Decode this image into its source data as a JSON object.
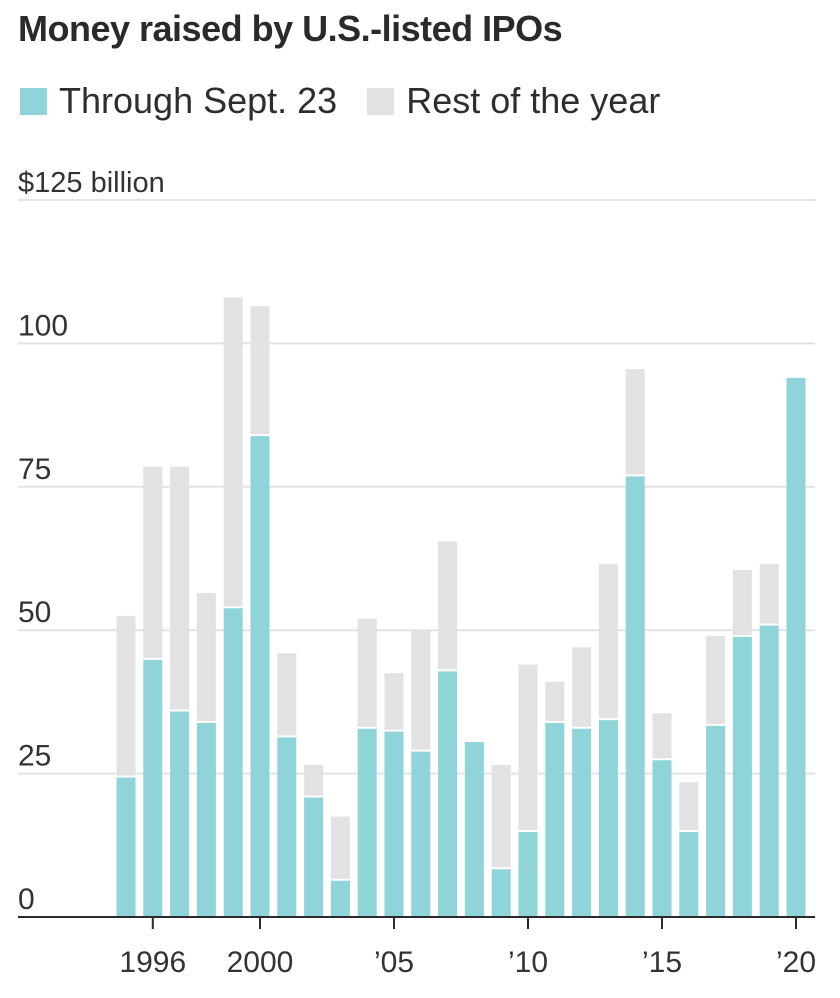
{
  "chart_data": {
    "type": "bar",
    "stacked": true,
    "title": "Money raised by U.S.-listed IPOs",
    "ylabel": "$125 billion",
    "ylim": [
      0,
      125
    ],
    "y_ticks": [
      {
        "value": 0,
        "label": "0"
      },
      {
        "value": 25,
        "label": "25"
      },
      {
        "value": 50,
        "label": "50"
      },
      {
        "value": 75,
        "label": "75"
      },
      {
        "value": 100,
        "label": "100"
      },
      {
        "value": 125,
        "label": "$125 billion"
      }
    ],
    "categories": [
      1995,
      1996,
      1997,
      1998,
      1999,
      2000,
      2001,
      2002,
      2003,
      2004,
      2005,
      2006,
      2007,
      2008,
      2009,
      2010,
      2011,
      2012,
      2013,
      2014,
      2015,
      2016,
      2017,
      2018,
      2019,
      2020
    ],
    "x_tick_labels": [
      {
        "year": 1996,
        "label": "1996"
      },
      {
        "year": 2000,
        "label": "2000"
      },
      {
        "year": 2005,
        "label": "’05"
      },
      {
        "year": 2010,
        "label": "’10"
      },
      {
        "year": 2015,
        "label": "’15"
      },
      {
        "year": 2020,
        "label": "’20"
      }
    ],
    "series": [
      {
        "name": "Through Sept. 23",
        "color": "#8fd4d8",
        "values": [
          24.5,
          45,
          36,
          34,
          54,
          84,
          31.5,
          21,
          6.5,
          33,
          32.5,
          29,
          43,
          30.5,
          8.5,
          15,
          34,
          33,
          34.5,
          77,
          27.5,
          15,
          33.5,
          49,
          51,
          94
        ]
      },
      {
        "name": "Rest of the year",
        "color": "#e2e2e4",
        "values": [
          28,
          33.5,
          42.5,
          22.5,
          54,
          22.5,
          14.5,
          5.5,
          11,
          19,
          10,
          21,
          22.5,
          0,
          18,
          29,
          7,
          14,
          27,
          18.5,
          8,
          8.5,
          15.5,
          11.5,
          10.5,
          0
        ]
      }
    ],
    "grid": true
  }
}
